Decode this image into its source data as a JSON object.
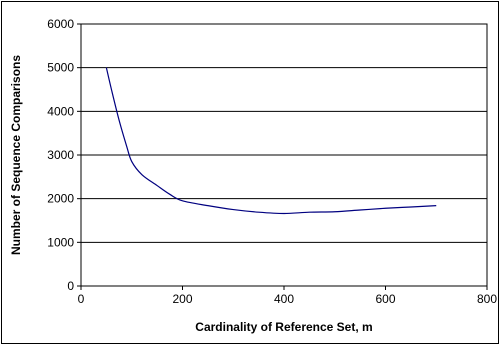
{
  "chart_data": {
    "type": "line",
    "title": "",
    "xlabel": "Cardinality of Reference Set, m",
    "ylabel": "Number of Sequence Comparisons",
    "xlim": [
      0,
      800
    ],
    "ylim": [
      0,
      6000
    ],
    "x_ticks": [
      0,
      200,
      400,
      600,
      800
    ],
    "y_ticks": [
      0,
      1000,
      2000,
      3000,
      4000,
      5000,
      6000
    ],
    "grid": "horizontal",
    "legend": "none",
    "line_color": "#000080",
    "series": [
      {
        "values": [
          {
            "x": 50,
            "y": 5000
          },
          {
            "x": 60,
            "y": 4500
          },
          {
            "x": 75,
            "y": 3800
          },
          {
            "x": 90,
            "y": 3200
          },
          {
            "x": 100,
            "y": 2850
          },
          {
            "x": 120,
            "y": 2550
          },
          {
            "x": 150,
            "y": 2300
          },
          {
            "x": 175,
            "y": 2100
          },
          {
            "x": 200,
            "y": 1950
          },
          {
            "x": 250,
            "y": 1840
          },
          {
            "x": 300,
            "y": 1750
          },
          {
            "x": 350,
            "y": 1690
          },
          {
            "x": 400,
            "y": 1660
          },
          {
            "x": 450,
            "y": 1690
          },
          {
            "x": 500,
            "y": 1700
          },
          {
            "x": 550,
            "y": 1740
          },
          {
            "x": 600,
            "y": 1780
          },
          {
            "x": 650,
            "y": 1810
          },
          {
            "x": 700,
            "y": 1840
          }
        ]
      }
    ]
  }
}
